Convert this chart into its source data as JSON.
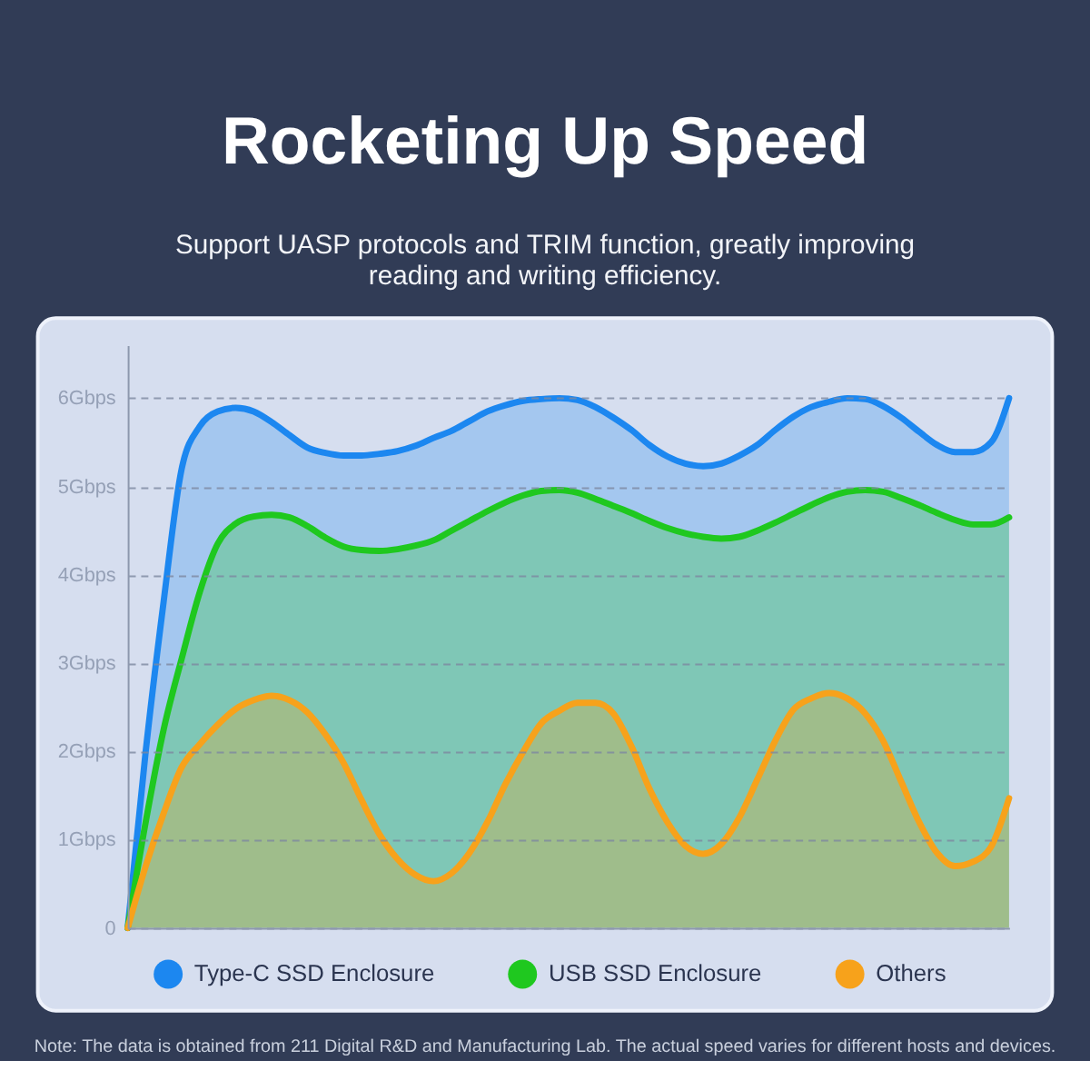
{
  "chart_data": {
    "type": "area",
    "title": "Rocketing Up Speed",
    "subtitle": "Support UASP protocols and TRIM function, greatly improving reading and writing efficiency.",
    "categories": [
      null,
      null,
      null,
      null,
      null,
      null,
      null,
      null,
      null,
      null,
      null,
      null,
      null,
      null,
      null,
      null,
      null,
      null,
      null,
      null,
      null,
      null,
      null,
      null,
      null,
      null,
      null,
      null,
      null,
      null,
      null,
      null,
      null,
      null,
      null,
      null,
      null,
      null,
      null,
      null,
      null,
      null,
      null,
      null,
      null,
      null,
      null,
      null,
      null,
      null
    ],
    "series": [
      {
        "name": "Type-C SSD Enclosure",
        "color": "#1c87f0",
        "values": [
          0,
          2.0,
          3.7,
          5.2,
          5.68,
          5.85,
          5.89,
          5.85,
          5.73,
          5.58,
          5.44,
          5.38,
          5.35,
          5.35,
          5.37,
          5.4,
          5.46,
          5.55,
          5.63,
          5.74,
          5.85,
          5.92,
          5.97,
          5.99,
          6.0,
          5.98,
          5.9,
          5.78,
          5.64,
          5.47,
          5.34,
          5.26,
          5.23,
          5.26,
          5.35,
          5.47,
          5.64,
          5.79,
          5.9,
          5.96,
          6.0,
          5.99,
          5.91,
          5.78,
          5.62,
          5.47,
          5.39,
          5.39,
          5.5,
          6.0
        ]
      },
      {
        "name": "USB SSD Enclosure",
        "color": "#1fc81f",
        "values": [
          0,
          1.2,
          2.25,
          3.05,
          3.8,
          4.35,
          4.58,
          4.66,
          4.68,
          4.65,
          4.55,
          4.42,
          4.32,
          4.28,
          4.27,
          4.29,
          4.33,
          4.39,
          4.5,
          4.61,
          4.72,
          4.82,
          4.9,
          4.95,
          4.96,
          4.93,
          4.86,
          4.78,
          4.7,
          4.61,
          4.53,
          4.47,
          4.43,
          4.41,
          4.43,
          4.5,
          4.59,
          4.69,
          4.79,
          4.88,
          4.94,
          4.96,
          4.94,
          4.87,
          4.79,
          4.7,
          4.62,
          4.57,
          4.57,
          4.65
        ]
      },
      {
        "name": "Others",
        "color": "#f7a21b",
        "values": [
          0,
          0.7,
          1.3,
          1.82,
          2.08,
          2.3,
          2.48,
          2.58,
          2.63,
          2.58,
          2.44,
          2.19,
          1.87,
          1.45,
          1.06,
          0.78,
          0.6,
          0.53,
          0.62,
          0.85,
          1.2,
          1.63,
          2.0,
          2.32,
          2.46,
          2.55,
          2.55,
          2.43,
          2.06,
          1.58,
          1.2,
          0.93,
          0.84,
          0.95,
          1.25,
          1.68,
          2.12,
          2.47,
          2.6,
          2.66,
          2.6,
          2.43,
          2.12,
          1.66,
          1.2,
          0.85,
          0.7,
          0.75,
          0.92,
          1.47
        ]
      }
    ],
    "ylim": [
      0,
      6.6
    ],
    "yticks": [
      0,
      {
        "value": 1,
        "label": "1Gbps"
      },
      {
        "value": 2,
        "label": "2Gbps"
      },
      {
        "value": 3,
        "label": "3Gbps"
      },
      {
        "value": 4,
        "label": "4Gbps"
      },
      {
        "value": 5,
        "label": "5Gbps"
      },
      {
        "value": 6,
        "label": "6Gbps"
      }
    ],
    "grid": "y",
    "legend": "bottom",
    "annotations": [
      "Note: The data is obtained from 211 Digital R&D and Manufacturing Lab. The actual speed varies for different hosts and devices."
    ]
  }
}
